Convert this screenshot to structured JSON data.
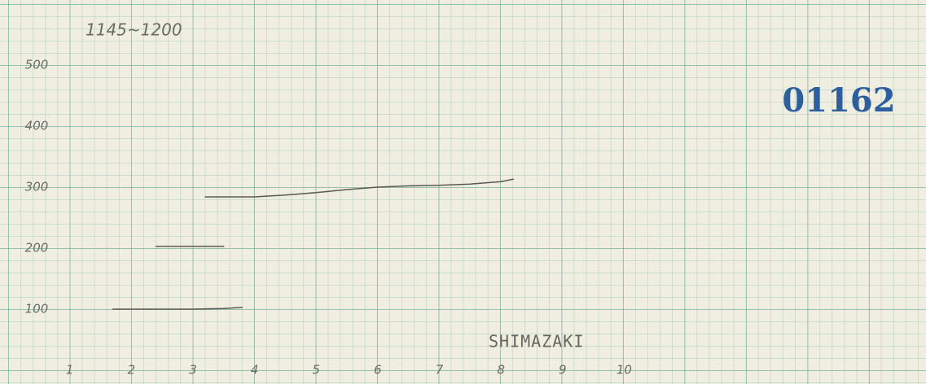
{
  "chart_data": {
    "type": "line",
    "title": "1145~1200",
    "xlabel": "SHIMAZAKI",
    "annotation": "01162",
    "xlim": [
      0,
      14.9
    ],
    "ylim": [
      0,
      600
    ],
    "xticks": [
      1,
      2,
      3,
      4,
      5,
      6,
      7,
      8,
      9,
      10
    ],
    "yticks": [
      100,
      200,
      300,
      400,
      500
    ],
    "series": [
      {
        "color": "#5a5a55",
        "x": [
          1.7,
          2.5,
          3.0,
          3.5,
          3.8
        ],
        "values": [
          100,
          100,
          100,
          101,
          103
        ]
      },
      {
        "color": "#5a5a55",
        "x": [
          2.4,
          3.5
        ],
        "values": [
          203,
          203
        ]
      },
      {
        "color": "#5a5a55",
        "x": [
          3.2,
          4.0,
          4.5,
          5.0,
          5.5,
          6.0,
          6.5,
          7.0,
          7.5,
          8.0,
          8.2
        ],
        "values": [
          284,
          284,
          287,
          291,
          296,
          300,
          302,
          303,
          305,
          309,
          313
        ]
      }
    ]
  }
}
